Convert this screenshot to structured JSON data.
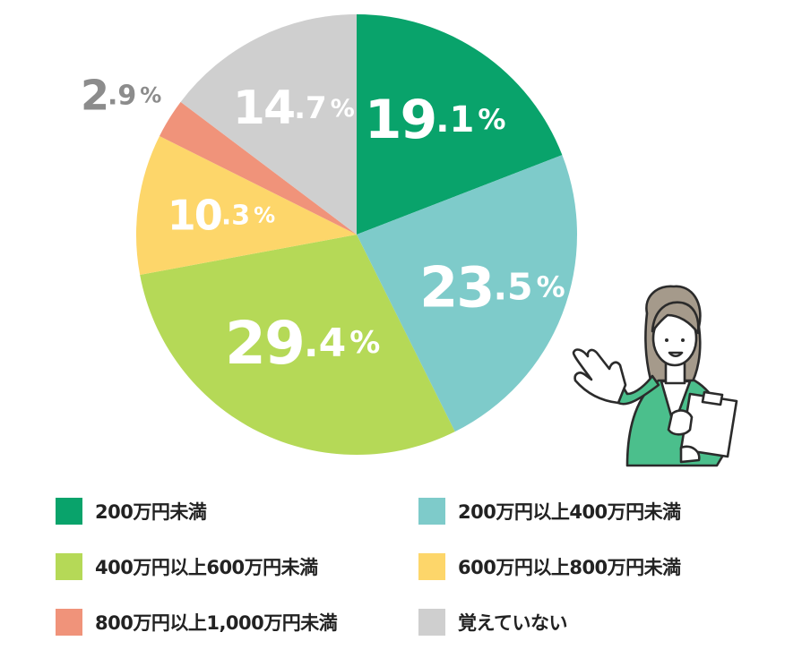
{
  "chart_data": {
    "type": "pie",
    "start_angle_deg": 0,
    "direction": "clockwise",
    "slices": [
      {
        "name": "200万円未満",
        "value": 19.1,
        "color": "#09a36b",
        "label_int": "19",
        "label_dec": ".1",
        "label_pct": "%",
        "label_color": "#ffffff"
      },
      {
        "name": "200万円以上400万円未満",
        "value": 23.5,
        "color": "#7ecbca",
        "label_int": "23",
        "label_dec": ".5",
        "label_pct": "%",
        "label_color": "#ffffff"
      },
      {
        "name": "400万円以上600万円未満",
        "value": 29.4,
        "color": "#b5d957",
        "label_int": "29",
        "label_dec": ".4",
        "label_pct": "%",
        "label_color": "#ffffff"
      },
      {
        "name": "600万円以上800万円未満",
        "value": 10.3,
        "color": "#fdd66a",
        "label_int": "10",
        "label_dec": ".3",
        "label_pct": "%",
        "label_color": "#ffffff"
      },
      {
        "name": "800万円以上1,000万円未満",
        "value": 2.9,
        "color": "#f0937a",
        "label_int": "2",
        "label_dec": ".9",
        "label_pct": "%",
        "label_color": "#8c8c8c"
      },
      {
        "name": "覚えていない",
        "value": 14.7,
        "color": "#cfcfcf",
        "label_int": "14",
        "label_dec": ".7",
        "label_pct": "%",
        "label_color": "#ffffff"
      }
    ],
    "legend_position": "bottom"
  },
  "legend": [
    {
      "label": "200万円未満",
      "color": "#09a36b"
    },
    {
      "label": "200万円以上400万円未満",
      "color": "#7ecbca"
    },
    {
      "label": "400万円以上600万円未満",
      "color": "#b5d957"
    },
    {
      "label": "600万円以上800万円未満",
      "color": "#fdd66a"
    },
    {
      "label": "800万円以上1,000万円未満",
      "color": "#f0937a"
    },
    {
      "label": "覚えていない",
      "color": "#cfcfcf"
    }
  ],
  "illustration": {
    "icon": "presenter-woman-with-clipboard-icon",
    "accent_color": "#4bbf8c"
  }
}
